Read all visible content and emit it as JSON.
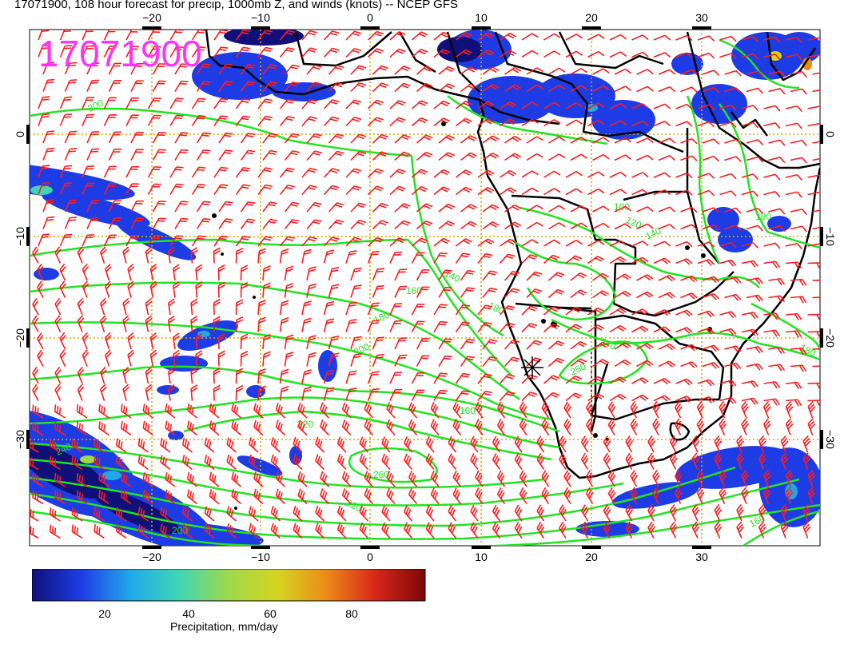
{
  "title": "17071900, 108 hour forecast for precip, 1000mb Z, and winds (knots) -- NCEP GFS",
  "stamp": "17071900",
  "axes": {
    "top_lon_labels": [
      "−20",
      "−10",
      "0",
      "10",
      "20",
      "30"
    ],
    "bottom_lon_labels": [
      "−20",
      "−10",
      "0",
      "10",
      "20",
      "30"
    ],
    "left_lat_labels": [
      "0",
      "−10",
      "−20",
      "−30"
    ],
    "right_lat_labels": [
      "0",
      "−10",
      "−20",
      "−30"
    ]
  },
  "contour_labels": [
    "200",
    "160",
    "140",
    "180",
    "100",
    "120",
    "140",
    "160",
    "180",
    "200",
    "220",
    "240",
    "250",
    "260",
    "220",
    "240",
    "200",
    "180",
    "160",
    "180"
  ],
  "colorbar": {
    "label": "Precipitation, mm/day",
    "ticks": [
      "20",
      "40",
      "60",
      "80"
    ],
    "colors": [
      "#10107a",
      "#1e3ce6",
      "#21a8e8",
      "#3fd6b4",
      "#9ed94a",
      "#d6d420",
      "#ec8a18",
      "#d8261a",
      "#7a0808"
    ]
  },
  "colors": {
    "contour": "#22e322",
    "wind": "#ff1a1a",
    "grid": "#e0a600",
    "coast": "#000000",
    "stamp": "#ff33ff"
  }
}
